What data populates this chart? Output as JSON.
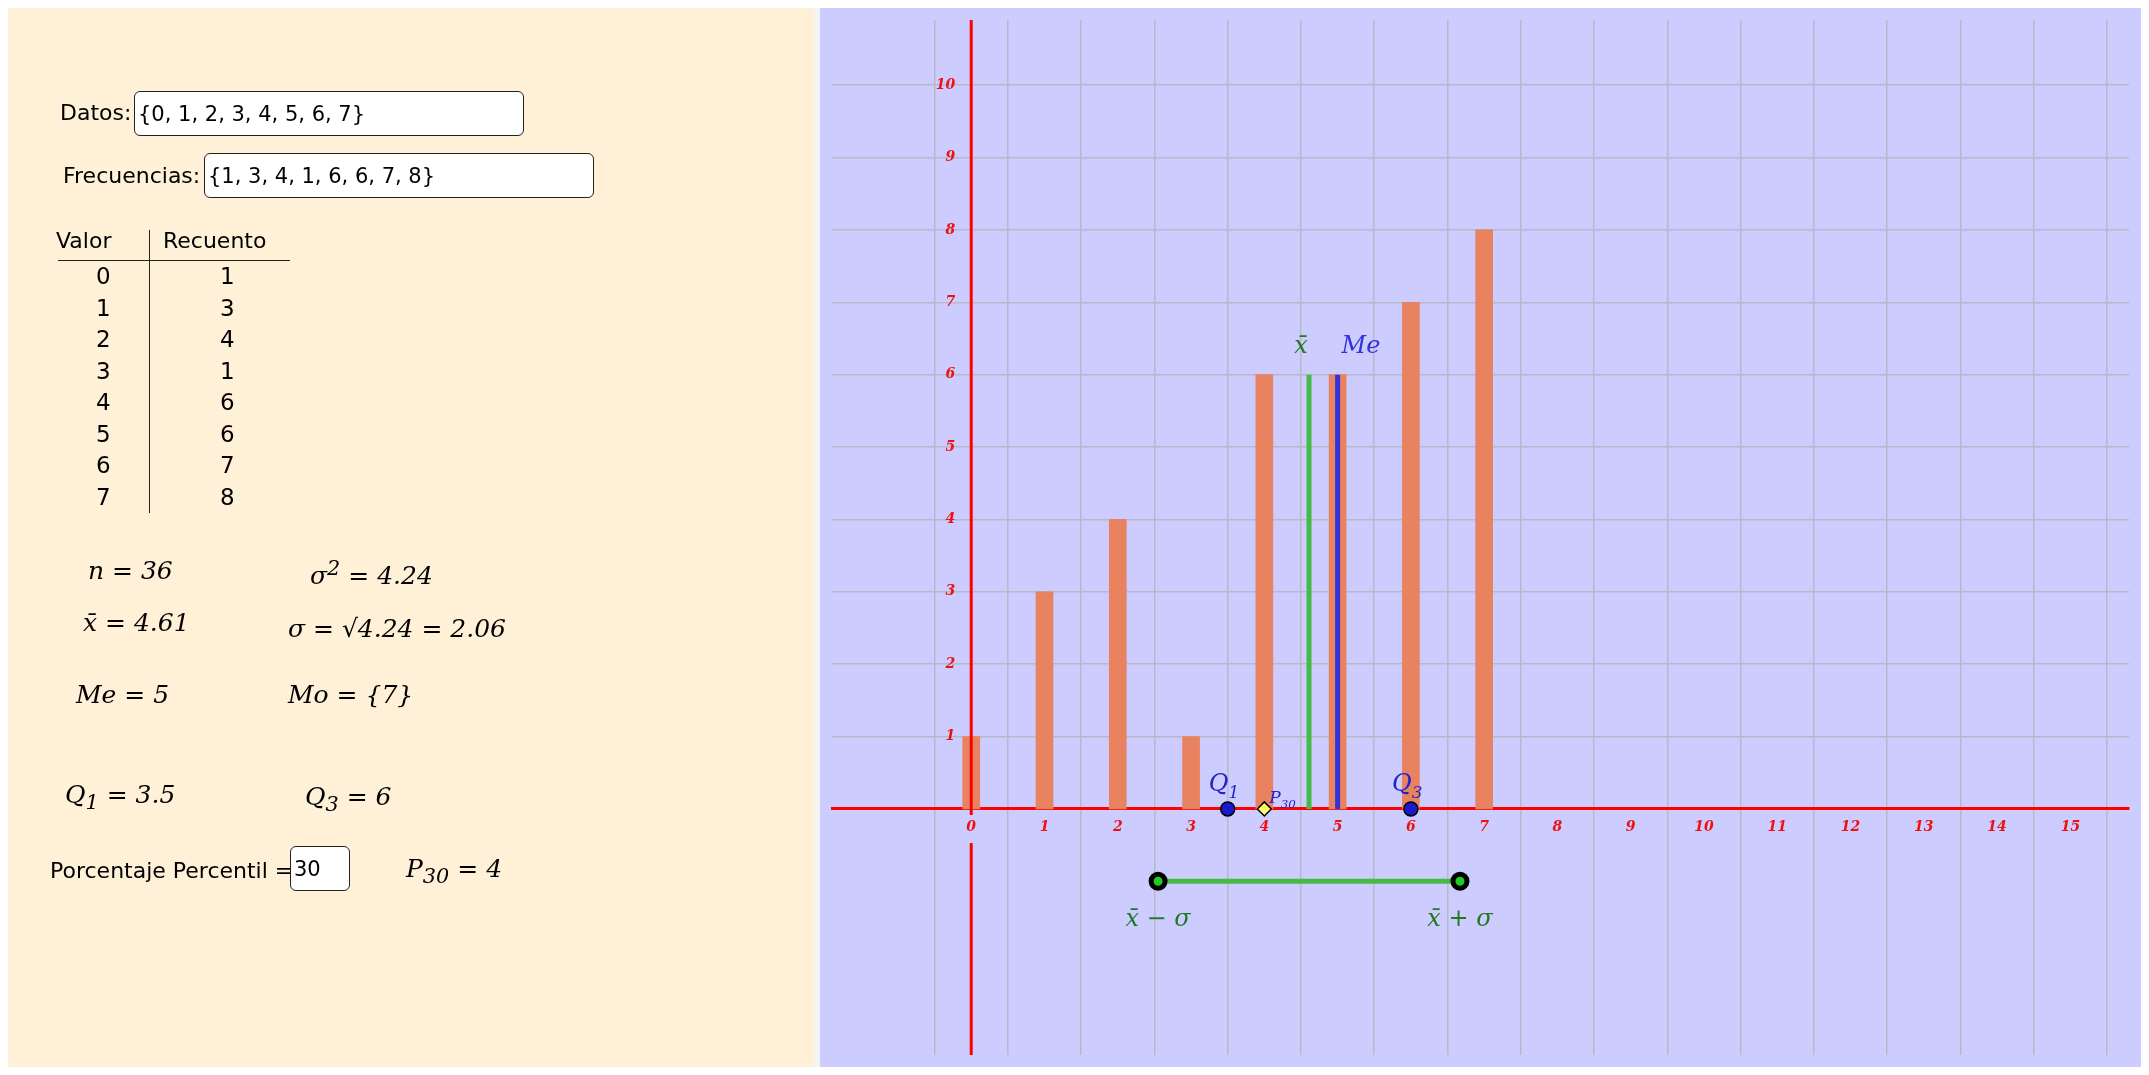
{
  "chart_data": [
    {
      "type": "other",
      "annotations": [
        "Datos:",
        "{0, 1, 2, 3, 4, 5, 6, 7}",
        "Frecuencias:",
        "{1, 3, 4, 1, 6, 6, 7, 8}",
        "Valor",
        "Recuento",
        "n = 36",
        "σ$^{2}$ = 4.24",
        "x̄ = 4.61",
        "σ = √4.24 = 2.06",
        "Me = 5",
        "Mo = {7}",
        "Q$_{1}$ = 3.5",
        "Q$_{3}$ = 6",
        "Porcentaje Percentil =",
        "30",
        "P$_{30}$ = 4",
        "0 1",
        "1 3",
        "2 4",
        "3 1",
        "4 6",
        "5 6",
        "6 7",
        "7 8"
      ]
    },
    {
      "type": "bar",
      "grid": true,
      "legend": false,
      "xlim": [
        -1.9,
        15.8
      ],
      "ylim": [
        -3.4,
        10.9
      ],
      "xticks": [
        0,
        1,
        2,
        3,
        4,
        5,
        6,
        7,
        8,
        9,
        10,
        11,
        12,
        13,
        14,
        15
      ],
      "yticks": [
        1,
        2,
        3,
        4,
        5,
        6,
        7,
        8,
        9,
        10
      ],
      "series": [
        {
          "type": "bar",
          "color": "#e8825f",
          "x": [
            0,
            1,
            2,
            3,
            4,
            5,
            6,
            7
          ],
          "values": [
            1,
            3,
            4,
            1,
            6,
            6,
            7,
            8
          ]
        },
        {
          "type": "line",
          "name": "x̄",
          "color": "#44bb44",
          "marker": "none",
          "x": [
            4.61,
            4.61
          ],
          "values": [
            0,
            6
          ]
        },
        {
          "type": "line",
          "name": "Me",
          "color": "#3333dd",
          "marker": "none",
          "x": [
            5,
            5
          ],
          "values": [
            0,
            6
          ]
        },
        {
          "type": "scatter",
          "name": "Q$_{1}$",
          "color": "#1a1acc",
          "marker": "circle",
          "x": [
            3.5
          ],
          "values": [
            0
          ]
        },
        {
          "type": "scatter",
          "name": "Q$_{3}$",
          "color": "#1a1acc",
          "marker": "circle",
          "x": [
            6
          ],
          "values": [
            0
          ]
        },
        {
          "type": "scatter",
          "name": "P$_{30}$",
          "color": "#ffff66",
          "marker": "diamond",
          "x": [
            4
          ],
          "values": [
            0
          ]
        },
        {
          "type": "line",
          "color": "#44bb44",
          "marker": "circle",
          "x": [
            2.55,
            6.67
          ],
          "values": [
            -1,
            -1
          ]
        }
      ],
      "annotations": [
        {
          "text": "x̄ − σ",
          "x": 2.55,
          "y": -1
        },
        {
          "text": "x̄ + σ",
          "x": 6.67,
          "y": -1
        }
      ]
    }
  ]
}
